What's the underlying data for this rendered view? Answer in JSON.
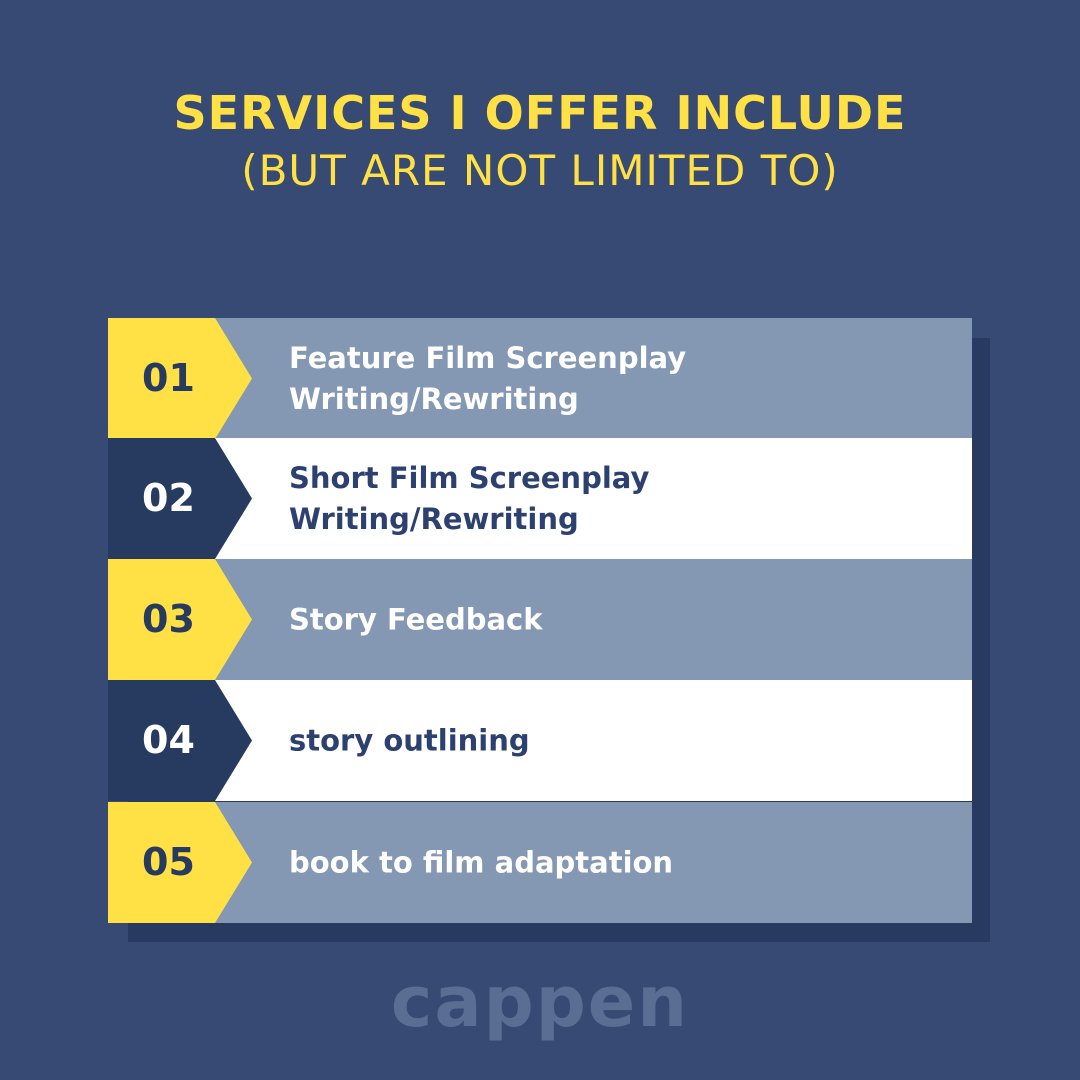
{
  "heading": {
    "line1": "SERVICES I OFFER INCLUDE",
    "line2": "(BUT ARE NOT LIMITED TO)"
  },
  "colors": {
    "background": "#374a73",
    "accent": "#ffe045",
    "navy": "#273a60",
    "row_light": "#8497b3",
    "row_white": "#ffffff"
  },
  "services": [
    {
      "number": "01",
      "label_line1": "Feature Film Screenplay",
      "label_line2": "Writing/Rewriting"
    },
    {
      "number": "02",
      "label_line1": "Short Film Screenplay",
      "label_line2": "Writing/Rewriting"
    },
    {
      "number": "03",
      "label_line1": "Story Feedback"
    },
    {
      "number": "04",
      "label_line1": "story outlining"
    },
    {
      "number": "05",
      "label_line1": "book to film adaptation"
    }
  ],
  "watermark": "cappen"
}
